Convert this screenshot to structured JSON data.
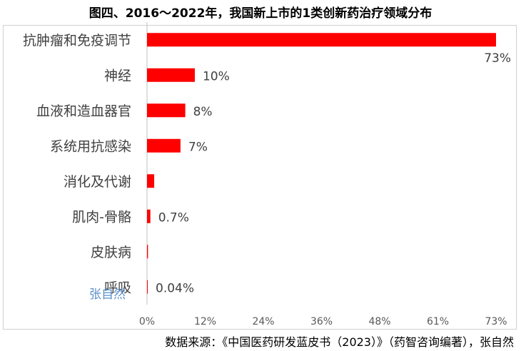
{
  "chart_data": {
    "type": "bar",
    "orientation": "horizontal",
    "title": "图四、2016～2022年，我国新上市的1类创新药治疗领域分布",
    "categories": [
      "抗肿瘤和免疫调节",
      "神经",
      "血液和造血器官",
      "系统用抗感染",
      "消化及代谢",
      "肌肉-骨骼",
      "皮肤病",
      "呼吸"
    ],
    "values": [
      73,
      10,
      8,
      7,
      1.5,
      0.7,
      0.2,
      0.04
    ],
    "data_labels": [
      "73%",
      "10%",
      "8%",
      "7%",
      "",
      "0.7%",
      "",
      "0.04%"
    ],
    "x_ticks": [
      "0%",
      "12%",
      "24%",
      "36%",
      "48%",
      "61%",
      "73%"
    ],
    "xlim": [
      0,
      73
    ],
    "grid": false,
    "bar_color": "#ff0000"
  },
  "watermark": "张自然",
  "source": "数据来源：《中国医药研发蓝皮书（2023）》（药智咨询编著），张自然"
}
